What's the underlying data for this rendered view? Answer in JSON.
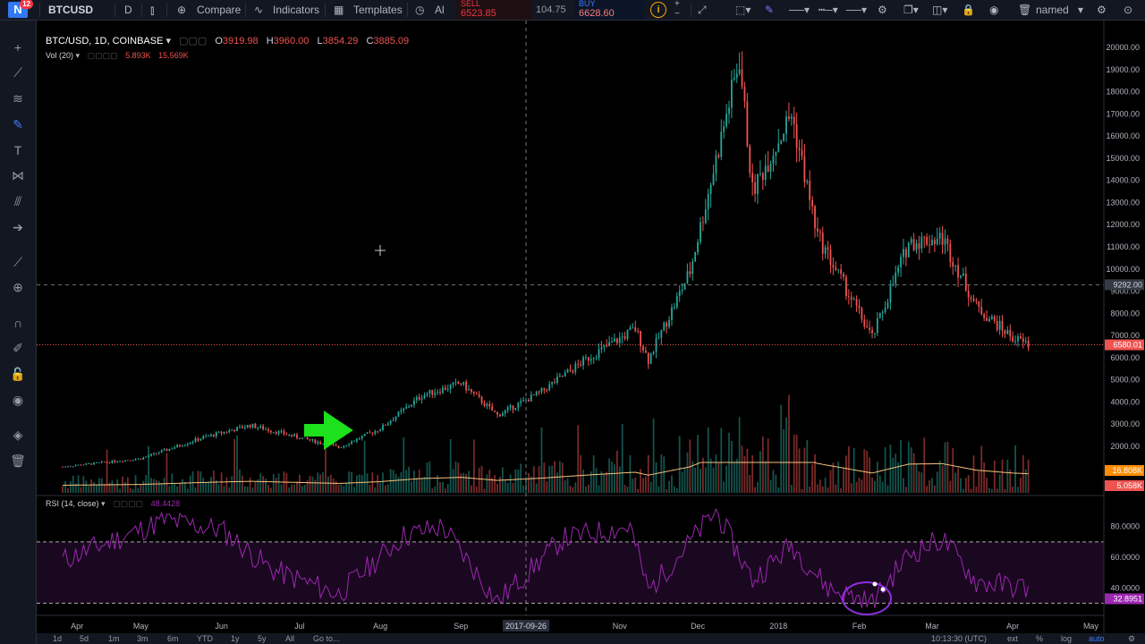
{
  "toolbar": {
    "logo": "N",
    "badge": "12",
    "symbol": "BTCUSD",
    "interval": "D",
    "compare": "Compare",
    "indicators": "Indicators",
    "templates": "Templates",
    "alert": "Al",
    "sell_label": "SELL",
    "sell_price": "6523.85",
    "spread": "104.75",
    "buy_label": "BUY",
    "buy_price": "6628.60",
    "layout_name": "named"
  },
  "legend": {
    "title": "BTC/USD, 1D, COINBASE",
    "o_label": "O",
    "o": "3919.98",
    "h_label": "H",
    "h": "3960.00",
    "l_label": "L",
    "l": "3854.29",
    "c_label": "C",
    "c": "3885.09",
    "vol_label": "Vol (20)",
    "vol1": "5.893K",
    "vol2": "15.569K"
  },
  "rsi_legend": {
    "title": "RSI (14, close)",
    "value": "48.4428"
  },
  "price_labels": {
    "crosshair": "9292.00",
    "current": "6580.01",
    "vol_ma": "16.808K",
    "vol_cur": "5.058K",
    "rsi_cur": "32.8951"
  },
  "crosshair_date": "2017-09-26",
  "bottom": {
    "ranges": [
      "1d",
      "5d",
      "1m",
      "3m",
      "6m",
      "YTD",
      "1y",
      "5y",
      "All"
    ],
    "goto": "Go to...",
    "time": "10:13:30 (UTC)",
    "ext": "ext",
    "pct": "%",
    "log": "log",
    "auto": "auto"
  },
  "colors": {
    "up": "#26a69a",
    "down": "#ef5350",
    "rsi": "#9c27b0",
    "vol_ma": "#f6c07a",
    "arrow": "#1ce11c",
    "current_line": "#ef5350"
  },
  "chart_data": {
    "type": "candlestick",
    "symbol": "BTC/USD",
    "timeframe": "1D",
    "exchange": "COINBASE",
    "x_labels": [
      "Apr",
      "May",
      "Jun",
      "Jul",
      "Aug",
      "Sep",
      "2017-09-26",
      "Nov",
      "Dec",
      "2018",
      "Feb",
      "Mar",
      "Apr",
      "May"
    ],
    "y_ticks": [
      2000,
      3000,
      4000,
      5000,
      6000,
      7000,
      8000,
      9000,
      10000,
      11000,
      12000,
      13000,
      14000,
      15000,
      16000,
      17000,
      18000,
      19000,
      20000
    ],
    "y_tick_labels": [
      "2000.00",
      "3000.00",
      "4000.00",
      "5000.00",
      "6000.00",
      "7000.00",
      "8000.00",
      "9000.00",
      "10000.00",
      "11000.00",
      "12000.00",
      "13000.00",
      "14000.00",
      "15000.00",
      "16000.00",
      "17000.00",
      "18000.00",
      "19000.00",
      "20000.00"
    ],
    "ylim": [
      1200,
      20600
    ],
    "price_path": {
      "dates": [
        "2017-04-01",
        "2017-05-01",
        "2017-05-25",
        "2017-06-12",
        "2017-07-16",
        "2017-08-01",
        "2017-08-17",
        "2017-09-01",
        "2017-09-15",
        "2017-10-01",
        "2017-10-20",
        "2017-11-07",
        "2017-11-12",
        "2017-11-28",
        "2017-12-17",
        "2017-12-22",
        "2018-01-06",
        "2018-01-16",
        "2018-02-06",
        "2018-02-20",
        "2018-03-05",
        "2018-03-18",
        "2018-04-01",
        "2018-04-07"
      ],
      "close": [
        1080,
        1450,
        2400,
        2950,
        1950,
        2800,
        4300,
        4850,
        3400,
        4400,
        6000,
        7300,
        5900,
        9900,
        19500,
        13500,
        17000,
        11500,
        6900,
        11200,
        11400,
        8300,
        6900,
        6580
      ]
    },
    "rsi": {
      "title": "RSI (14, close)",
      "levels": [
        30,
        70
      ],
      "ylim": [
        25,
        95
      ],
      "y_tick_labels": [
        "40.0000",
        "60.0000",
        "80.0000"
      ],
      "path_dates": [
        "2017-04-01",
        "2017-05-10",
        "2017-06-01",
        "2017-06-20",
        "2017-07-16",
        "2017-08-10",
        "2017-08-25",
        "2017-09-15",
        "2017-10-10",
        "2017-11-05",
        "2017-11-12",
        "2017-12-08",
        "2017-12-22",
        "2018-01-06",
        "2018-01-20",
        "2018-02-06",
        "2018-02-20",
        "2018-03-05",
        "2018-03-18",
        "2018-04-07"
      ],
      "path_values": [
        58,
        84,
        78,
        52,
        36,
        74,
        80,
        31,
        72,
        80,
        38,
        90,
        45,
        68,
        40,
        30,
        62,
        72,
        44,
        40
      ]
    },
    "volume": {
      "ma_label": "16.808K",
      "last_label": "5.058K"
    }
  }
}
